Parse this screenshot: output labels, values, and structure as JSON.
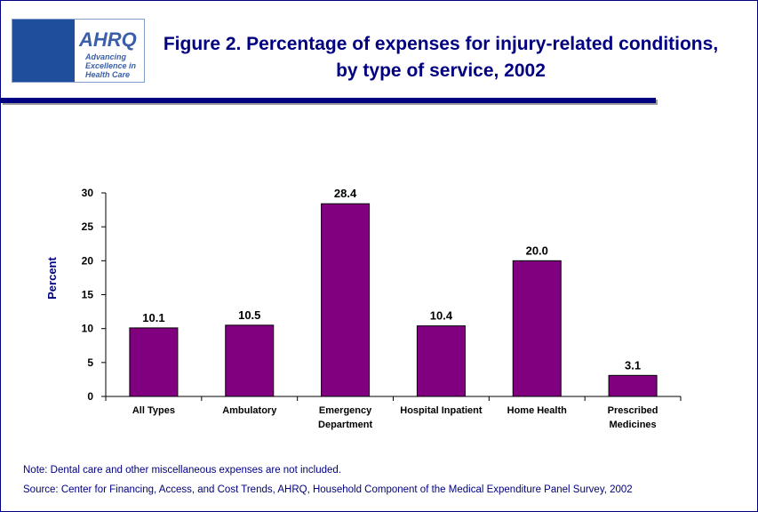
{
  "logo": {
    "name": "AHRQ",
    "tagline": "Advancing Excellence in Health Care"
  },
  "chart_data": {
    "type": "bar",
    "title": "Figure 2. Percentage of expenses for injury-related conditions, by type of service, 2002",
    "y_label": "Percent",
    "categories": [
      "All Types",
      "Ambulatory",
      "Emergency Department",
      "Hospital Inpatient",
      "Home Health",
      "Prescribed Medicines"
    ],
    "values": [
      10.1,
      10.5,
      28.4,
      10.4,
      20.0,
      3.1
    ],
    "value_labels": [
      "10.1",
      "10.5",
      "28.4",
      "10.4",
      "20.0",
      "3.1"
    ],
    "color": "#800080",
    "ylim": [
      0,
      30
    ],
    "yticks": [
      0,
      5,
      10,
      15,
      20,
      25,
      30
    ],
    "grid": false,
    "notes": [
      "Note: Dental care and other miscellaneous expenses are not included.",
      "Source: Center for Financing, Access, and Cost Trends, AHRQ, Household Component of the Medical Expenditure Panel Survey, 2002"
    ]
  }
}
